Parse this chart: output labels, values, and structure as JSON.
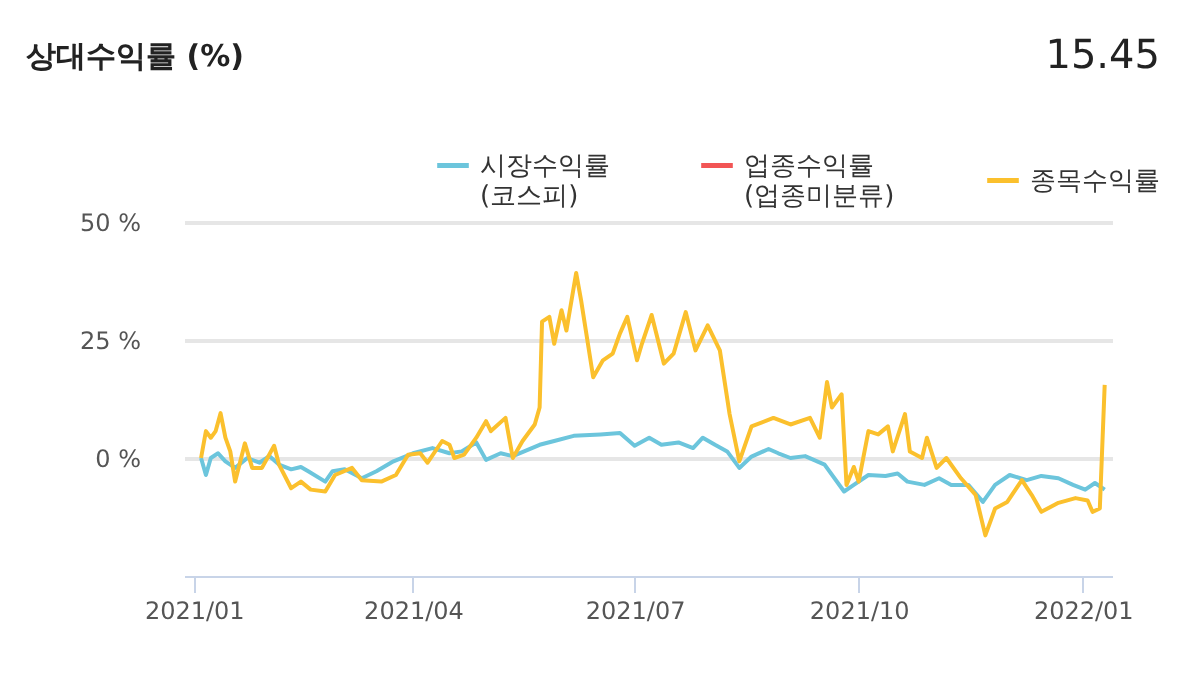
{
  "chart_data": {
    "type": "line",
    "title": "상대수익률 (%)",
    "annotations": [
      "15.45"
    ],
    "xlim": [
      "2020-12-28",
      "2022-01-13"
    ],
    "xticks": [
      {
        "value": "2021-01-01",
        "label": "2021/01"
      },
      {
        "value": "2021-04-01",
        "label": "2021/04"
      },
      {
        "value": "2021-07-01",
        "label": "2021/07"
      },
      {
        "value": "2021-10-01",
        "label": "2021/10"
      },
      {
        "value": "2022-01-01",
        "label": "2022/01"
      }
    ],
    "ylim": [
      -25,
      50
    ],
    "yticks": [
      {
        "value": 0,
        "label": "0 %"
      },
      {
        "value": 25,
        "label": "25 %"
      },
      {
        "value": 50,
        "label": "50 %"
      }
    ],
    "grid": "y",
    "legend": "top",
    "marker": "none",
    "line_style": "solid",
    "series": [
      {
        "name": "시장수익률 (코스피)",
        "color": "#6cc5dc",
        "x": [
          "2021-01-04",
          "2021-01-06",
          "2021-01-08",
          "2021-01-11",
          "2021-01-14",
          "2021-01-18",
          "2021-01-23",
          "2021-01-28",
          "2021-02-01",
          "2021-02-05",
          "2021-02-10",
          "2021-02-14",
          "2021-02-17",
          "2021-02-24",
          "2021-02-27",
          "2021-03-04",
          "2021-03-11",
          "2021-03-17",
          "2021-03-24",
          "2021-04-01",
          "2021-04-09",
          "2021-04-16",
          "2021-04-21",
          "2021-04-27",
          "2021-05-01",
          "2021-05-07",
          "2021-05-12",
          "2021-05-23",
          "2021-05-29",
          "2021-06-06",
          "2021-06-17",
          "2021-06-25",
          "2021-07-01",
          "2021-07-07",
          "2021-07-12",
          "2021-07-19",
          "2021-07-25",
          "2021-07-29",
          "2021-08-03",
          "2021-08-08",
          "2021-08-13",
          "2021-08-18",
          "2021-08-25",
          "2021-08-29",
          "2021-09-03",
          "2021-09-09",
          "2021-09-17",
          "2021-09-25",
          "2021-09-29",
          "2021-10-05",
          "2021-10-12",
          "2021-10-17",
          "2021-10-21",
          "2021-10-28",
          "2021-11-03",
          "2021-11-08",
          "2021-11-15",
          "2021-11-21",
          "2021-11-26",
          "2021-12-02",
          "2021-12-09",
          "2021-12-15",
          "2021-12-22",
          "2021-12-28",
          "2022-01-02",
          "2022-01-06",
          "2022-01-10"
        ],
        "values": [
          0,
          -3.6,
          0,
          1,
          -0.7,
          -2.1,
          0,
          -1,
          0.4,
          -1.4,
          -2.4,
          -1.9,
          -2.8,
          -5,
          -2.8,
          -2.4,
          -4.3,
          -2.8,
          -0.7,
          1,
          2.1,
          1,
          1.4,
          3.3,
          -0.4,
          1,
          0.4,
          2.8,
          3.6,
          4.7,
          5,
          5.3,
          2.6,
          4.3,
          2.8,
          3.3,
          2.1,
          4.3,
          2.8,
          1.4,
          -2.1,
          0.3,
          1.9,
          1,
          0,
          0.4,
          -1.4,
          -7.1,
          -5.7,
          -3.6,
          -3.8,
          -3.3,
          -5,
          -5.7,
          -4.3,
          -5.7,
          -5.7,
          -9.3,
          -5.7,
          -3.6,
          -4.7,
          -3.8,
          -4.3,
          -5.7,
          -6.7,
          -5.3,
          -6.7
        ]
      },
      {
        "name": "업종수익률 (업종미분류)",
        "color": "#f25555"
      },
      {
        "name": "종목수익률",
        "color": "#fbc02d",
        "x": [
          "2021-01-04",
          "2021-01-06",
          "2021-01-08",
          "2021-01-10",
          "2021-01-12",
          "2021-01-14",
          "2021-01-16",
          "2021-01-18",
          "2021-01-22",
          "2021-01-25",
          "2021-01-29",
          "2021-02-03",
          "2021-02-05",
          "2021-02-10",
          "2021-02-14",
          "2021-02-18",
          "2021-02-24",
          "2021-02-28",
          "2021-03-07",
          "2021-03-11",
          "2021-03-19",
          "2021-03-25",
          "2021-03-30",
          "2021-04-04",
          "2021-04-07",
          "2021-04-13",
          "2021-04-16",
          "2021-04-18",
          "2021-04-22",
          "2021-04-27",
          "2021-05-01",
          "2021-05-03",
          "2021-05-09",
          "2021-05-12",
          "2021-05-16",
          "2021-05-21",
          "2021-05-23",
          "2021-05-24",
          "2021-05-27",
          "2021-05-29",
          "2021-06-01",
          "2021-06-03",
          "2021-06-07",
          "2021-06-09",
          "2021-06-14",
          "2021-06-18",
          "2021-06-22",
          "2021-06-25",
          "2021-06-28",
          "2021-07-02",
          "2021-07-04",
          "2021-07-08",
          "2021-07-13",
          "2021-07-17",
          "2021-07-22",
          "2021-07-26",
          "2021-07-31",
          "2021-08-05",
          "2021-08-09",
          "2021-08-13",
          "2021-08-18",
          "2021-08-27",
          "2021-09-03",
          "2021-09-11",
          "2021-09-15",
          "2021-09-18",
          "2021-09-20",
          "2021-09-24",
          "2021-09-26",
          "2021-09-29",
          "2021-10-01",
          "2021-10-05",
          "2021-10-09",
          "2021-10-13",
          "2021-10-15",
          "2021-10-20",
          "2021-10-22",
          "2021-10-27",
          "2021-10-29",
          "2021-11-02",
          "2021-11-06",
          "2021-11-12",
          "2021-11-18",
          "2021-11-22",
          "2021-11-26",
          "2021-12-01",
          "2021-12-07",
          "2021-12-11",
          "2021-12-15",
          "2021-12-22",
          "2021-12-29",
          "2022-01-03",
          "2022-01-05",
          "2022-01-08",
          "2022-01-10"
        ],
        "values": [
          0,
          5.7,
          4.3,
          5.7,
          9.5,
          4.3,
          1.4,
          -5,
          3.1,
          -2.1,
          -2.1,
          2.6,
          -1.4,
          -6.4,
          -5,
          -6.7,
          -7.1,
          -3.6,
          -2.1,
          -4.7,
          -5,
          -3.6,
          0.7,
          1,
          -1,
          3.6,
          2.8,
          0,
          0.7,
          4.3,
          7.8,
          5.7,
          8.5,
          0,
          3.6,
          7.1,
          10.7,
          28.9,
          29.9,
          24.2,
          31.3,
          27,
          39.2,
          33.5,
          17.1,
          20.7,
          22.1,
          26.4,
          29.9,
          20.7,
          24.2,
          30.3,
          20,
          22.1,
          30.9,
          22.8,
          28.1,
          22.8,
          9.3,
          -0.7,
          6.7,
          8.5,
          7.1,
          8.5,
          4.3,
          16.1,
          10.7,
          13.5,
          -5.7,
          -1.9,
          -5,
          5.7,
          5,
          6.7,
          1.4,
          9.3,
          1.4,
          0,
          4.3,
          -2.1,
          0,
          -4.3,
          -7.8,
          -16.4,
          -10.7,
          -9.3,
          -4.7,
          -7.8,
          -11.4,
          -9.5,
          -8.5,
          -9,
          -11.4,
          -10.7,
          15.5
        ]
      }
    ]
  }
}
